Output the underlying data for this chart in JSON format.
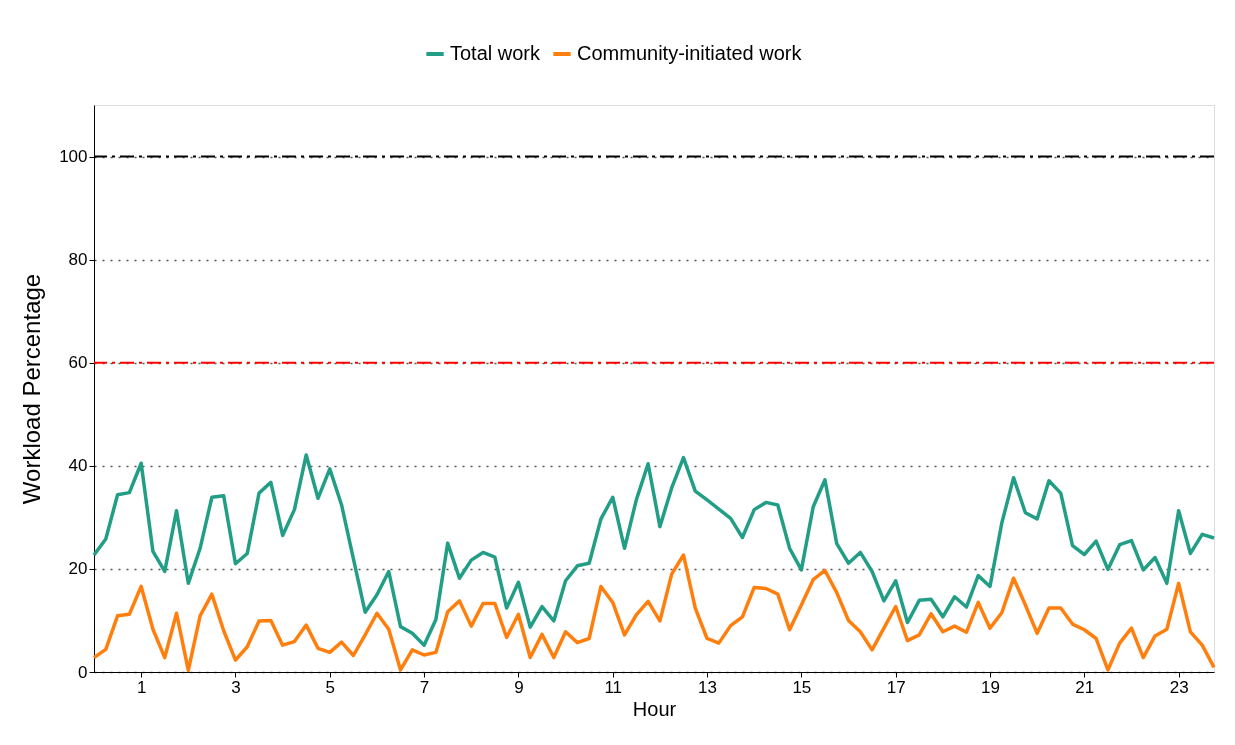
{
  "chart_data": {
    "type": "line",
    "xlabel": "Hour",
    "ylabel": "Workload Percentage",
    "x": [
      0,
      0.25,
      0.5,
      0.75,
      1,
      1.25,
      1.5,
      1.75,
      2,
      2.25,
      2.5,
      2.75,
      3,
      3.25,
      3.5,
      3.75,
      4,
      4.25,
      4.5,
      4.75,
      5,
      5.25,
      5.5,
      5.75,
      6,
      6.25,
      6.5,
      6.75,
      7,
      7.25,
      7.5,
      7.75,
      8,
      8.25,
      8.5,
      8.75,
      9,
      9.25,
      9.5,
      9.75,
      10,
      10.25,
      10.5,
      10.75,
      11,
      11.25,
      11.5,
      11.75,
      12,
      12.25,
      12.5,
      12.75,
      13,
      13.25,
      13.5,
      13.75,
      14,
      14.25,
      14.5,
      14.75,
      15,
      15.25,
      15.5,
      15.75,
      16,
      16.25,
      16.5,
      16.75,
      17,
      17.25,
      17.5,
      17.75,
      18,
      18.25,
      18.5,
      18.75,
      19,
      19.25,
      19.5,
      19.75,
      20,
      20.25,
      20.5,
      20.75,
      21,
      21.25,
      21.5,
      21.75,
      22,
      22.25,
      22.5,
      22.75,
      23,
      23.25,
      23.5,
      23.75
    ],
    "series": [
      {
        "name": "Total work",
        "color": "#229e87",
        "values": [
          22.7,
          25.8,
          34.4,
          34.8,
          40.5,
          23.4,
          19.5,
          31.3,
          17.2,
          24.0,
          33.9,
          34.2,
          21.0,
          23.0,
          34.7,
          36.8,
          26.5,
          31.5,
          42.1,
          33.7,
          39.4,
          32.4,
          22.0,
          11.6,
          15.0,
          19.5,
          8.8,
          7.5,
          5.2,
          10.2,
          25.0,
          18.2,
          21.7,
          23.2,
          22.3,
          12.4,
          17.4,
          8.7,
          12.7,
          9.9,
          17.7,
          20.6,
          21.1,
          29.7,
          33.9,
          24.0,
          33.4,
          40.4,
          28.2,
          35.7,
          41.6,
          35.1,
          33.4,
          31.6,
          29.8,
          26.1,
          31.5,
          32.9,
          32.4,
          24.0,
          19.8,
          32.0,
          37.3,
          24.9,
          21.1,
          23.2,
          19.5,
          13.8,
          17.7,
          9.6,
          13.9,
          14.1,
          10.7,
          14.6,
          12.6,
          18.7,
          16.6,
          28.9,
          37.7,
          30.9,
          29.7,
          37.1,
          34.7,
          24.5,
          22.8,
          25.4,
          19.9,
          24.7,
          25.5,
          19.8,
          22.2,
          17.2,
          31.3,
          23.0,
          26.7,
          26.0
        ]
      },
      {
        "name": "Community-initiated work",
        "color": "#ff7f0e",
        "values": [
          2.8,
          4.4,
          10.9,
          11.2,
          16.6,
          8.3,
          2.8,
          11.4,
          0.3,
          10.9,
          15.1,
          8.0,
          2.3,
          4.9,
          9.9,
          10.0,
          5.2,
          5.9,
          9.1,
          4.6,
          3.8,
          5.8,
          3.2,
          7.2,
          11.4,
          8.3,
          0.4,
          4.3,
          3.3,
          3.8,
          11.7,
          13.8,
          8.9,
          13.3,
          13.3,
          6.7,
          11.2,
          2.8,
          7.3,
          2.8,
          7.8,
          5.7,
          6.5,
          16.6,
          13.5,
          7.2,
          11.1,
          13.7,
          9.9,
          19.0,
          22.7,
          12.4,
          6.5,
          5.6,
          9.0,
          10.7,
          16.4,
          16.2,
          15.1,
          8.2,
          13.0,
          17.9,
          19.7,
          15.4,
          10.0,
          7.8,
          4.3,
          8.5,
          12.7,
          6.1,
          7.2,
          11.3,
          7.8,
          8.9,
          7.7,
          13.5,
          8.5,
          11.5,
          18.2,
          13.0,
          7.5,
          12.4,
          12.4,
          9.3,
          8.2,
          6.5,
          0.4,
          5.6,
          8.5,
          2.8,
          7.0,
          8.3,
          17.2,
          7.8,
          5.2,
          0.9
        ]
      }
    ],
    "xlim": [
      0,
      23.75
    ],
    "xticks": [
      1,
      3,
      5,
      7,
      9,
      11,
      13,
      15,
      17,
      19,
      21,
      23
    ],
    "ylim": [
      0,
      110
    ],
    "yticks": [
      0,
      20,
      40,
      60,
      80,
      100
    ],
    "ref_lines": [
      {
        "axis": "y",
        "value": 60,
        "color": "#ff0000",
        "line_style": "dashdot"
      },
      {
        "axis": "y",
        "value": 100,
        "color": "#000000",
        "line_style": "dashdot"
      }
    ],
    "grid": "y",
    "legend": "top",
    "line_style": "solid",
    "marker": "none"
  }
}
